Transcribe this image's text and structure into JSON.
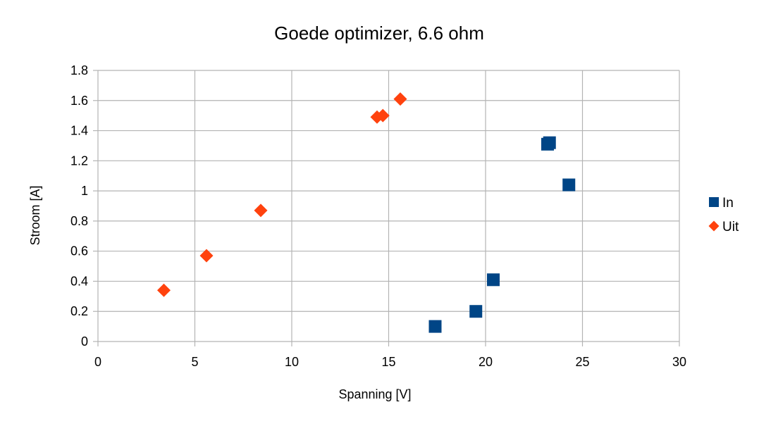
{
  "chart_data": {
    "type": "scatter",
    "title": "Goede optimizer, 6.6 ohm",
    "xlabel": "Spanning [V]",
    "ylabel": "Stroom [A]",
    "xlim": [
      0,
      30
    ],
    "ylim": [
      0,
      1.8
    ],
    "xticks": [
      "0",
      "5",
      "10",
      "15",
      "20",
      "25",
      "30"
    ],
    "yticks": [
      "0",
      "0.2",
      "0.4",
      "0.6",
      "0.8",
      "1",
      "1.2",
      "1.4",
      "1.6",
      "1.8"
    ],
    "grid": true,
    "legend_position": "right",
    "series": [
      {
        "name": "In",
        "marker": "square",
        "color": "#004586",
        "points": [
          {
            "x": 17.4,
            "y": 0.1
          },
          {
            "x": 19.5,
            "y": 0.2
          },
          {
            "x": 20.4,
            "y": 0.41
          },
          {
            "x": 23.2,
            "y": 1.31
          },
          {
            "x": 23.3,
            "y": 1.32
          },
          {
            "x": 24.3,
            "y": 1.04
          }
        ]
      },
      {
        "name": "Uit",
        "marker": "diamond",
        "color": "#ff420e",
        "points": [
          {
            "x": 3.4,
            "y": 0.34
          },
          {
            "x": 5.6,
            "y": 0.57
          },
          {
            "x": 8.4,
            "y": 0.87
          },
          {
            "x": 14.4,
            "y": 1.49
          },
          {
            "x": 14.7,
            "y": 1.5
          },
          {
            "x": 15.6,
            "y": 1.61
          }
        ]
      }
    ]
  }
}
